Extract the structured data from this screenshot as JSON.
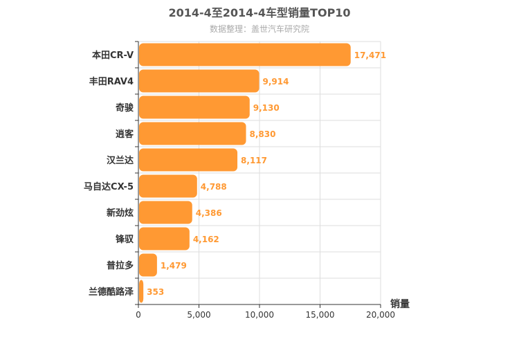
{
  "chart_data": {
    "type": "bar",
    "orientation": "horizontal",
    "title": "2014-4至2014-4车型销量TOP10",
    "subtitle": "数据整理：盖世汽车研究院",
    "categories": [
      "本田CR-V",
      "丰田RAV4",
      "奇骏",
      "逍客",
      "汉兰达",
      "马自达CX-5",
      "新劲炫",
      "锋驭",
      "普拉多",
      "兰德酷路泽"
    ],
    "series": [
      {
        "values": [
          17471,
          9914,
          9130,
          8830,
          8117,
          4788,
          4386,
          4162,
          1479,
          353
        ]
      }
    ],
    "value_labels": [
      "17,471",
      "9,914",
      "9,130",
      "8,830",
      "8,117",
      "4,788",
      "4,386",
      "4,162",
      "1,479",
      "353"
    ],
    "xlabel": "销量",
    "ylabel": "",
    "xlim": [
      0,
      20000
    ],
    "xticks": [
      0,
      5000,
      10000,
      15000,
      20000
    ],
    "xtick_labels": [
      "0",
      "5,000",
      "10,000",
      "15,000",
      "20,000"
    ],
    "grid": true,
    "legend": "none",
    "bar_color": "#ff9933"
  }
}
